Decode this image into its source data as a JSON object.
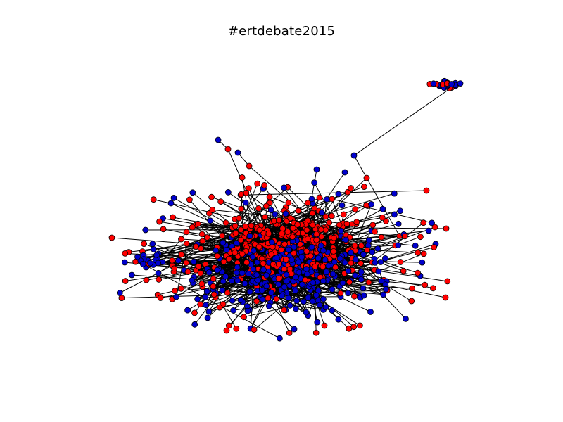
{
  "title": "#ertdebate2015",
  "colors": {
    "background": "#ffffff",
    "edge": "#000000",
    "node_stroke": "#000000",
    "node_red": "#ff0000",
    "node_blue": "#0000cc"
  },
  "network": {
    "node_color_classes": [
      "red",
      "blue"
    ]
  }
}
